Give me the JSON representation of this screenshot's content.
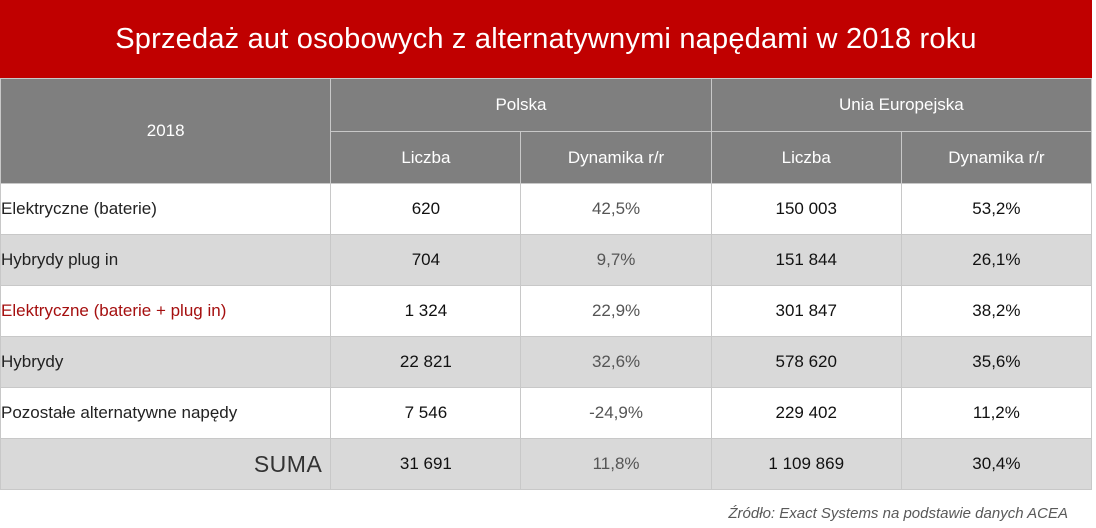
{
  "title": "Sprzedaż aut osobowych z alternatywnymi napędami w 2018 roku",
  "header": {
    "year": "2018",
    "groups": [
      "Polska",
      "Unia Europejska"
    ],
    "subcolumns": [
      "Liczba",
      "Dynamika r/r",
      "Liczba",
      "Dynamika r/r"
    ]
  },
  "rows": [
    {
      "label": "Elektryczne (baterie)",
      "pl_count": "620",
      "pl_dyn": "42,5%",
      "eu_count": "150 003",
      "eu_dyn": "53,2%"
    },
    {
      "label": "Hybrydy plug in",
      "pl_count": "704",
      "pl_dyn": "9,7%",
      "eu_count": "151 844",
      "eu_dyn": "26,1%"
    },
    {
      "label": "Elektryczne (baterie + plug in)",
      "pl_count": "1 324",
      "pl_dyn": "22,9%",
      "eu_count": "301 847",
      "eu_dyn": "38,2%"
    },
    {
      "label": "Hybrydy",
      "pl_count": "22 821",
      "pl_dyn": "32,6%",
      "eu_count": "578 620",
      "eu_dyn": "35,6%"
    },
    {
      "label": "Pozostałe alternatywne napędy",
      "pl_count": "7 546",
      "pl_dyn": "-24,9%",
      "eu_count": "229 402",
      "eu_dyn": "11,2%"
    },
    {
      "label": "SUMA",
      "pl_count": "31 691",
      "pl_dyn": "11,8%",
      "eu_count": "1 109 869",
      "eu_dyn": "30,4%"
    }
  ],
  "source": "Źródło: Exact Systems na podstawie danych ACEA",
  "colors": {
    "title_bg": "#c00000",
    "header_bg": "#7f7f7f",
    "accent_text": "#a50f0f",
    "alt_row_bg": "#d9d9d9"
  }
}
